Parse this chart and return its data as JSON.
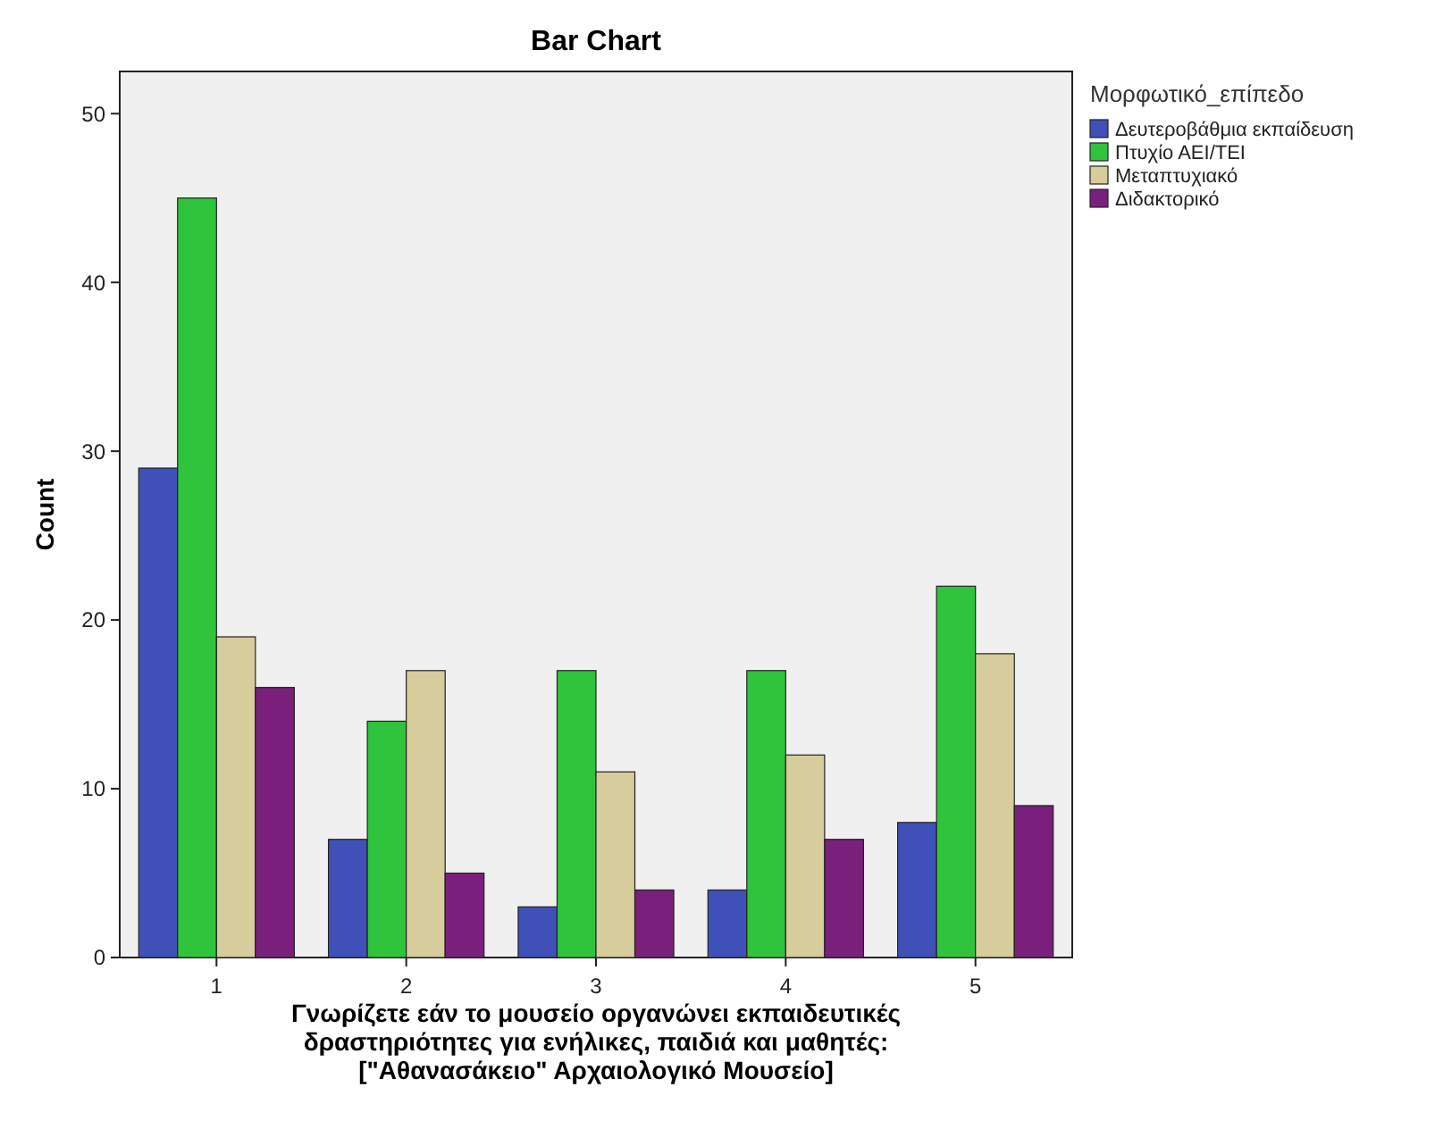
{
  "chart_data": {
    "type": "bar",
    "title": "Bar Chart",
    "xlabel": "Γνωρίζετε εάν το μουσείο οργανώνει εκπαιδευτικές\nδραστηριότητες για ενήλικες, παιδιά και μαθητές:\n[\"Αθανασάκειο\" Αρχαιολογικό Μουσείο]",
    "ylabel": "Count",
    "legend_title": "Μορφωτικό_επίπεδο",
    "legend": "top right",
    "categories": [
      "1",
      "2",
      "3",
      "4",
      "5"
    ],
    "series": [
      {
        "name": "Δευτεροβάθμια εκπαίδευση",
        "color": "#3f51b8",
        "values": [
          29,
          7,
          3,
          4,
          8
        ]
      },
      {
        "name": "Πτυχίο ΑΕΙ/ΤΕΙ",
        "color": "#2fc43c",
        "values": [
          45,
          14,
          17,
          17,
          22
        ]
      },
      {
        "name": "Μεταπτυχιακό",
        "color": "#d6cc9c",
        "values": [
          19,
          17,
          11,
          12,
          18
        ]
      },
      {
        "name": "Διδακτορικό",
        "color": "#7b1f7c",
        "values": [
          16,
          5,
          4,
          7,
          9
        ]
      }
    ],
    "ylim": [
      0,
      52.5
    ],
    "yticks": [
      0,
      10,
      20,
      30,
      40,
      50
    ],
    "grid": false
  }
}
